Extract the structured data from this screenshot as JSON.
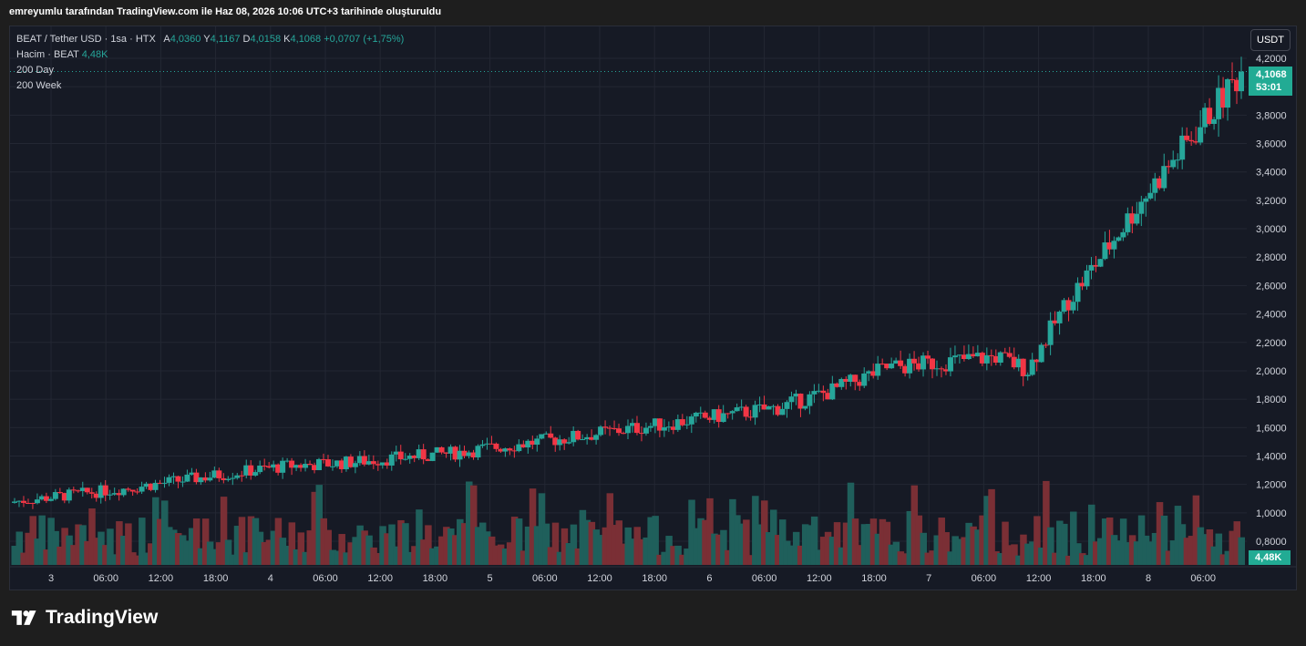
{
  "header": {
    "attribution": "emreyumlu tarafından TradingView.com ile Haz 08, 2026 10:06 UTC+3 tarihinde oluşturuldu"
  },
  "legend": {
    "symbol": "BEAT / Tether USD · 1sa · HTX",
    "open_label": "A",
    "open": "4,0360",
    "high_label": "Y",
    "high": "4,1167",
    "low_label": "D",
    "low": "4,0158",
    "close_label": "K",
    "close": "4,1068",
    "change": "+0,0707 (+1,75%)",
    "volume_label": "Hacim · BEAT",
    "volume": "4,48K",
    "ma1": "200 Day",
    "ma2": "200 Week"
  },
  "currency_button": "USDT",
  "last_price_tag": {
    "price": "4,1068",
    "countdown": "53:01"
  },
  "volume_tag": "4,48K",
  "brand": {
    "name": "TradingView"
  },
  "colors": {
    "up": "#26a69a",
    "down": "#f23645",
    "up_vol": "#1f5f5b",
    "down_vol": "#7a2f35",
    "grid": "#232733",
    "axis_text": "#d1d4dc",
    "background": "#161a25"
  },
  "chart_data": {
    "type": "candlestick",
    "y_axis": {
      "ticks": [
        "4,2000",
        "4,0000",
        "3,8000",
        "3,6000",
        "3,4000",
        "3,2000",
        "3,0000",
        "2,8000",
        "2,6000",
        "2,4000",
        "2,2000",
        "2,0000",
        "1,8000",
        "1,6000",
        "1,4000",
        "1,2000",
        "1,0000",
        "0,8000"
      ],
      "range": [
        0.8,
        4.2
      ]
    },
    "x_axis": {
      "ticks": [
        "3",
        "06:00",
        "12:00",
        "18:00",
        "4",
        "06:00",
        "12:00",
        "18:00",
        "5",
        "06:00",
        "12:00",
        "18:00",
        "6",
        "06:00",
        "12:00",
        "18:00",
        "7",
        "06:00",
        "12:00",
        "18:00",
        "8",
        "06:00"
      ]
    },
    "series": [
      {
        "name": "BEAT / Tether USD",
        "type": "candlestick",
        "close_start": 1.08,
        "close_anchors": [
          [
            0,
            1.08
          ],
          [
            24,
            1.17
          ],
          [
            48,
            1.28
          ],
          [
            60,
            1.33
          ],
          [
            72,
            1.35
          ],
          [
            96,
            1.42
          ],
          [
            120,
            1.52
          ],
          [
            144,
            1.63
          ],
          [
            168,
            1.74
          ],
          [
            180,
            1.86
          ],
          [
            192,
            2.02
          ],
          [
            216,
            2.1
          ],
          [
            223,
            2.01
          ],
          [
            232,
            2.5
          ],
          [
            240,
            2.84
          ],
          [
            248,
            3.2
          ],
          [
            256,
            3.52
          ],
          [
            264,
            3.85
          ],
          [
            270,
            4.1068
          ]
        ]
      },
      {
        "name": "Hacim · BEAT",
        "type": "volume",
        "last": "4,48K"
      }
    ]
  }
}
